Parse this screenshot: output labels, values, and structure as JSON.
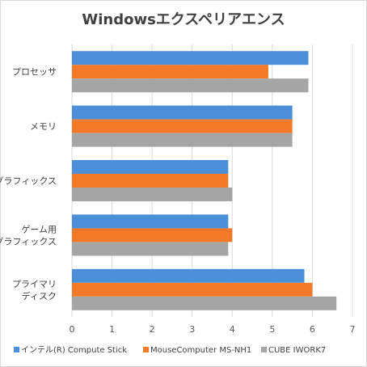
{
  "chart_data": {
    "type": "bar",
    "orientation": "horizontal",
    "title": "Windowsエクスペリアエンス",
    "categories": [
      [
        "プロセッサ"
      ],
      [
        "メモリ"
      ],
      [
        "グラフィックス"
      ],
      [
        "ゲーム用",
        "グラフィックス"
      ],
      [
        "プライマリ",
        "ディスク"
      ]
    ],
    "series": [
      {
        "name": "インテル(R) Compute Stick",
        "color": "#4a8fd8",
        "values": [
          5.9,
          5.5,
          3.9,
          3.9,
          5.8
        ]
      },
      {
        "name": "MouseComputer  MS-NH1",
        "color": "#f47a2a",
        "values": [
          4.9,
          5.5,
          3.9,
          4.0,
          6.0
        ]
      },
      {
        "name": "CUBE   IWORK7",
        "color": "#a5a5a5",
        "values": [
          5.9,
          5.5,
          4.0,
          3.9,
          6.6
        ]
      }
    ],
    "xlim": [
      0,
      7
    ],
    "xticks": [
      0,
      1,
      2,
      3,
      4,
      5,
      6,
      7
    ],
    "grid": "vertical",
    "legend_position": "bottom"
  }
}
